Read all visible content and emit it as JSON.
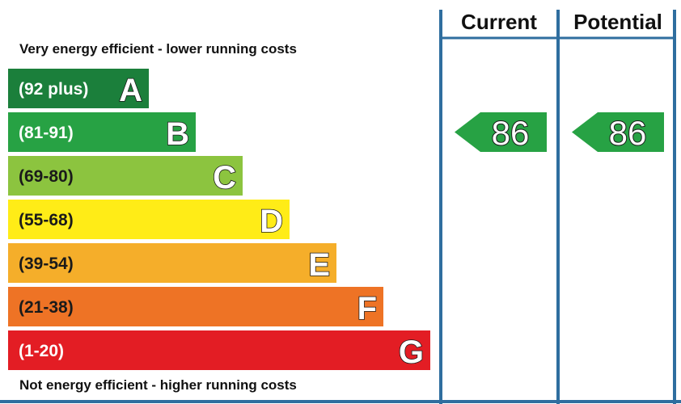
{
  "chart_data": {
    "type": "bar",
    "top_caption": "Very energy efficient - lower running costs",
    "bottom_caption": "Not energy efficient - higher running costs",
    "columns": [
      "Current",
      "Potential"
    ],
    "bands": [
      {
        "letter": "A",
        "range": "(92 plus)",
        "color": "#1b7f3b",
        "range_color": "#ffffff"
      },
      {
        "letter": "B",
        "range": "(81-91)",
        "color": "#27a244",
        "range_color": "#ffffff"
      },
      {
        "letter": "C",
        "range": "(69-80)",
        "color": "#8cc43f",
        "range_color": "#1a1a1a"
      },
      {
        "letter": "D",
        "range": "(55-68)",
        "color": "#ffec17",
        "range_color": "#1a1a1a"
      },
      {
        "letter": "E",
        "range": "(39-54)",
        "color": "#f5ae2a",
        "range_color": "#1a1a1a"
      },
      {
        "letter": "F",
        "range": "(21-38)",
        "color": "#ee7325",
        "range_color": "#1a1a1a"
      },
      {
        "letter": "G",
        "range": "(1-20)",
        "color": "#e31d24",
        "range_color": "#ffffff"
      }
    ],
    "ratings": [
      {
        "column": "Current",
        "value": 86,
        "band": "B",
        "color": "#27a244"
      },
      {
        "column": "Potential",
        "value": 86,
        "band": "B",
        "color": "#27a244"
      }
    ],
    "frame_color": "#2f6e9f"
  }
}
